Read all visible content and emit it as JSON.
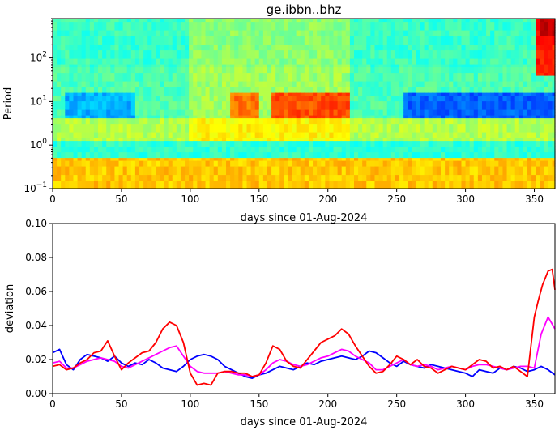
{
  "chart_data": [
    {
      "type": "heatmap",
      "title": "ge.ibbn..bhz",
      "xlabel": "days since 01-Aug-2024",
      "ylabel": "Period",
      "xlim": [
        0,
        365
      ],
      "ylim": [
        0.1,
        800
      ],
      "yscale": "log",
      "x_ticks": [
        0,
        50,
        100,
        150,
        200,
        250,
        300,
        350
      ],
      "y_ticks": [
        {
          "value": 0.1,
          "base": "10",
          "exp": "−1"
        },
        {
          "value": 1,
          "base": "10",
          "exp": "0"
        },
        {
          "value": 10,
          "base": "10",
          "exp": "1"
        },
        {
          "value": 100,
          "base": "10",
          "exp": "2"
        }
      ],
      "colormap": "jet",
      "description_bands": [
        {
          "period_range": [
            0.1,
            0.5
          ],
          "level": 0.68
        },
        {
          "period_range": [
            0.5,
            1.3
          ],
          "level": 0.42
        },
        {
          "period_range": [
            1.3,
            4
          ],
          "level": 0.55
        },
        {
          "period_range": [
            4,
            15
          ],
          "level": 0.45
        },
        {
          "period_range": [
            15,
            800
          ],
          "level": 0.43
        }
      ]
    },
    {
      "type": "line",
      "xlabel": "days since 01-Aug-2024",
      "ylabel": "deviation",
      "xlim": [
        0,
        365
      ],
      "ylim": [
        0,
        0.1
      ],
      "x_ticks": [
        0,
        50,
        100,
        150,
        200,
        250,
        300,
        350
      ],
      "y_ticks": [
        0.0,
        0.02,
        0.04,
        0.06,
        0.08,
        0.1
      ],
      "y_tick_labels": [
        "0.00",
        "0.02",
        "0.04",
        "0.06",
        "0.08",
        "0.10"
      ],
      "series": [
        {
          "color": "#0000ff",
          "x": [
            0,
            5,
            10,
            15,
            20,
            25,
            30,
            35,
            40,
            45,
            50,
            55,
            60,
            65,
            70,
            75,
            80,
            85,
            90,
            95,
            100,
            105,
            110,
            115,
            120,
            125,
            130,
            135,
            140,
            145,
            150,
            155,
            160,
            165,
            170,
            175,
            180,
            185,
            190,
            195,
            200,
            205,
            210,
            215,
            220,
            225,
            230,
            235,
            240,
            245,
            250,
            255,
            260,
            265,
            270,
            275,
            280,
            285,
            290,
            295,
            300,
            305,
            310,
            315,
            320,
            325,
            330,
            335,
            340,
            345,
            350,
            355,
            360,
            365
          ],
          "y": [
            0.024,
            0.026,
            0.017,
            0.014,
            0.02,
            0.023,
            0.022,
            0.021,
            0.019,
            0.022,
            0.018,
            0.016,
            0.018,
            0.017,
            0.02,
            0.018,
            0.015,
            0.014,
            0.013,
            0.016,
            0.02,
            0.022,
            0.023,
            0.022,
            0.02,
            0.016,
            0.014,
            0.012,
            0.01,
            0.009,
            0.011,
            0.012,
            0.014,
            0.016,
            0.015,
            0.014,
            0.016,
            0.018,
            0.017,
            0.019,
            0.02,
            0.021,
            0.022,
            0.021,
            0.02,
            0.022,
            0.025,
            0.024,
            0.021,
            0.018,
            0.016,
            0.019,
            0.017,
            0.016,
            0.015,
            0.017,
            0.016,
            0.015,
            0.014,
            0.013,
            0.012,
            0.01,
            0.014,
            0.013,
            0.012,
            0.015,
            0.014,
            0.016,
            0.015,
            0.013,
            0.014,
            0.016,
            0.014,
            0.011
          ]
        },
        {
          "color": "#ff00ff",
          "x": [
            0,
            5,
            10,
            15,
            20,
            25,
            30,
            35,
            40,
            45,
            50,
            55,
            60,
            65,
            70,
            75,
            80,
            85,
            90,
            95,
            100,
            105,
            110,
            115,
            120,
            125,
            130,
            135,
            140,
            145,
            150,
            155,
            160,
            165,
            170,
            175,
            180,
            185,
            190,
            195,
            200,
            205,
            210,
            215,
            220,
            225,
            230,
            235,
            240,
            245,
            250,
            255,
            260,
            265,
            270,
            275,
            280,
            285,
            290,
            295,
            300,
            305,
            310,
            315,
            320,
            325,
            330,
            335,
            340,
            345,
            350,
            355,
            360,
            365
          ],
          "y": [
            0.018,
            0.019,
            0.015,
            0.015,
            0.017,
            0.019,
            0.02,
            0.021,
            0.02,
            0.019,
            0.016,
            0.015,
            0.017,
            0.019,
            0.021,
            0.023,
            0.025,
            0.027,
            0.028,
            0.022,
            0.016,
            0.013,
            0.012,
            0.012,
            0.012,
            0.013,
            0.012,
            0.011,
            0.011,
            0.01,
            0.011,
            0.014,
            0.018,
            0.02,
            0.019,
            0.017,
            0.016,
            0.017,
            0.019,
            0.021,
            0.022,
            0.024,
            0.026,
            0.025,
            0.022,
            0.02,
            0.018,
            0.014,
            0.014,
            0.016,
            0.018,
            0.02,
            0.017,
            0.016,
            0.017,
            0.016,
            0.014,
            0.015,
            0.016,
            0.015,
            0.014,
            0.016,
            0.017,
            0.017,
            0.016,
            0.015,
            0.014,
            0.015,
            0.016,
            0.016,
            0.015,
            0.035,
            0.045,
            0.038
          ]
        },
        {
          "color": "#ff0000",
          "x": [
            0,
            5,
            10,
            15,
            20,
            25,
            30,
            35,
            40,
            45,
            50,
            55,
            60,
            65,
            70,
            75,
            80,
            85,
            90,
            95,
            100,
            105,
            110,
            115,
            120,
            125,
            130,
            135,
            140,
            145,
            150,
            155,
            160,
            165,
            170,
            175,
            180,
            185,
            190,
            195,
            200,
            205,
            210,
            215,
            220,
            225,
            230,
            235,
            240,
            245,
            250,
            255,
            260,
            265,
            270,
            275,
            280,
            285,
            290,
            295,
            300,
            305,
            310,
            315,
            320,
            325,
            330,
            335,
            340,
            345,
            350,
            353,
            356,
            360,
            363,
            365
          ],
          "y": [
            0.016,
            0.017,
            0.014,
            0.015,
            0.018,
            0.02,
            0.024,
            0.025,
            0.031,
            0.022,
            0.014,
            0.018,
            0.021,
            0.024,
            0.025,
            0.03,
            0.038,
            0.042,
            0.04,
            0.03,
            0.012,
            0.005,
            0.006,
            0.005,
            0.012,
            0.013,
            0.013,
            0.012,
            0.012,
            0.01,
            0.011,
            0.018,
            0.028,
            0.026,
            0.019,
            0.016,
            0.015,
            0.02,
            0.025,
            0.03,
            0.032,
            0.034,
            0.038,
            0.035,
            0.028,
            0.022,
            0.016,
            0.012,
            0.013,
            0.017,
            0.022,
            0.02,
            0.017,
            0.02,
            0.016,
            0.015,
            0.012,
            0.014,
            0.016,
            0.015,
            0.014,
            0.017,
            0.02,
            0.019,
            0.015,
            0.016,
            0.014,
            0.016,
            0.013,
            0.01,
            0.045,
            0.055,
            0.064,
            0.072,
            0.073,
            0.061
          ]
        }
      ]
    }
  ]
}
